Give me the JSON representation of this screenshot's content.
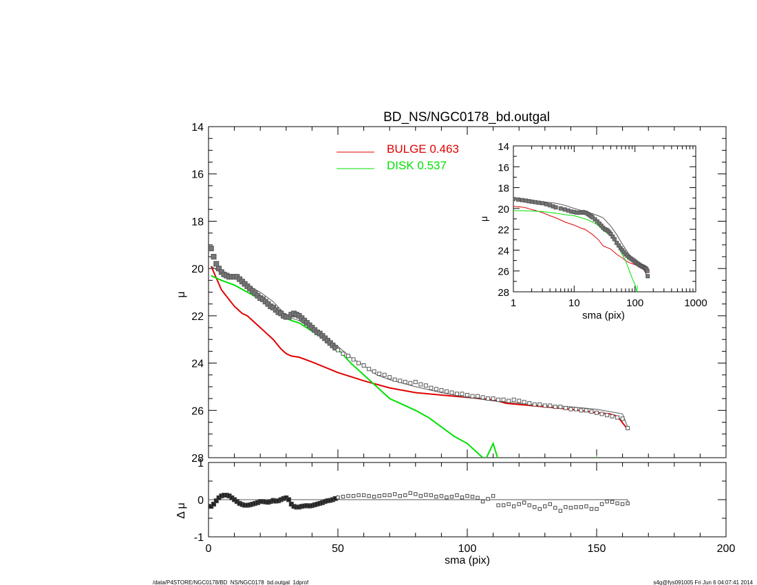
{
  "footer": {
    "left": "/data/P4STORE/NGC0178/BD_NS/NGC0178_bd.outgal_1dprof",
    "right": "s4g@fys091005  Fri Jun  6 04:07:41 2014"
  },
  "colors": {
    "bulge": "#e00000",
    "disk": "#00e000",
    "data": "#555555",
    "model": "#555555",
    "axis": "#000000"
  },
  "chart_data": [
    {
      "id": "main",
      "type": "line",
      "title": "BD_NS/NGC0178_bd.outgal",
      "xlabel": "",
      "ylabel": "μ",
      "xlim": [
        0,
        200
      ],
      "ylim": [
        28,
        14
      ],
      "yticks": [
        "14",
        "16",
        "18",
        "20",
        "22",
        "24",
        "26",
        "28"
      ],
      "legend": [
        {
          "label": "BULGE  0.463",
          "color": "#e00000"
        },
        {
          "label": "DISK  0.537",
          "color": "#00e000"
        }
      ],
      "series": [
        {
          "name": "BULGE  0.463",
          "color": "#e00000",
          "x": [
            1,
            5,
            10,
            13,
            15,
            20,
            25,
            28,
            30,
            32,
            35,
            40,
            50,
            60,
            70,
            80,
            90,
            100,
            105,
            110,
            115,
            120,
            130,
            140,
            150,
            155,
            158,
            162
          ],
          "y": [
            19.9,
            20.9,
            21.6,
            21.9,
            22.0,
            22.5,
            23.0,
            23.4,
            23.6,
            23.7,
            23.75,
            23.95,
            24.4,
            24.75,
            25.05,
            25.25,
            25.35,
            25.45,
            25.5,
            25.55,
            25.7,
            25.75,
            25.85,
            25.95,
            26.1,
            26.15,
            26.25,
            26.8
          ]
        },
        {
          "name": "DISK  0.537",
          "color": "#00e000",
          "x": [
            1,
            5,
            10,
            15,
            20,
            25,
            28,
            30,
            32,
            35,
            40,
            45,
            50,
            55,
            60,
            65,
            70,
            75,
            80,
            85,
            90,
            95,
            100,
            105,
            107,
            110,
            112
          ],
          "y": [
            20.3,
            20.5,
            20.7,
            21.0,
            21.3,
            21.65,
            21.85,
            22.1,
            22.2,
            22.3,
            22.65,
            23.0,
            23.4,
            24.0,
            24.5,
            25.0,
            25.5,
            25.75,
            26.0,
            26.3,
            26.7,
            27.1,
            27.4,
            27.9,
            28.1,
            27.4,
            28.1
          ]
        },
        {
          "name": "",
          "color": "#555555",
          "x": [
            1,
            5,
            10,
            15,
            20,
            25,
            28,
            30,
            32,
            35,
            40,
            45,
            50,
            55,
            60,
            65,
            70,
            80,
            90,
            100,
            110,
            120,
            130,
            140,
            150,
            160,
            162
          ],
          "y": [
            19.9,
            20.2,
            20.4,
            20.7,
            21.0,
            21.4,
            21.75,
            22.0,
            22.1,
            22.2,
            22.55,
            22.9,
            23.3,
            23.75,
            24.1,
            24.5,
            24.7,
            25.0,
            25.25,
            25.45,
            25.6,
            25.7,
            25.8,
            25.85,
            25.95,
            26.15,
            26.7
          ]
        }
      ],
      "points": {
        "x": [
          1,
          2,
          3,
          4,
          5,
          6,
          7,
          8,
          9,
          10,
          11,
          12,
          13,
          14,
          15,
          16,
          17,
          18,
          19,
          20,
          21,
          22,
          23,
          24,
          25,
          26,
          27,
          28,
          29,
          30,
          31,
          32,
          33,
          34,
          35,
          36,
          37,
          38,
          39,
          40,
          41,
          42,
          43,
          44,
          45,
          46,
          47,
          48,
          49,
          50,
          52,
          54,
          56,
          58,
          60,
          62,
          64,
          66,
          68,
          70,
          72,
          74,
          76,
          78,
          80,
          82,
          84,
          86,
          88,
          90,
          92,
          94,
          96,
          98,
          100,
          102,
          104,
          106,
          108,
          110,
          112,
          114,
          116,
          118,
          120,
          122,
          124,
          126,
          128,
          130,
          132,
          134,
          136,
          138,
          140,
          142,
          144,
          146,
          148,
          150,
          152,
          154,
          156,
          158,
          160,
          162
        ],
        "y": [
          19.15,
          19.5,
          19.8,
          20.0,
          20.15,
          20.25,
          20.3,
          20.35,
          20.35,
          20.35,
          20.35,
          20.45,
          20.55,
          20.65,
          20.75,
          20.85,
          20.95,
          21.05,
          21.15,
          21.25,
          21.3,
          21.4,
          21.5,
          21.6,
          21.65,
          21.75,
          21.85,
          21.9,
          22.0,
          22.05,
          22.05,
          21.95,
          21.9,
          21.95,
          22.0,
          22.1,
          22.2,
          22.3,
          22.4,
          22.5,
          22.6,
          22.7,
          22.75,
          22.85,
          22.95,
          23.05,
          23.15,
          23.25,
          23.35,
          23.45,
          23.6,
          23.7,
          23.85,
          24.0,
          24.1,
          24.25,
          24.35,
          24.45,
          24.5,
          24.6,
          24.7,
          24.75,
          24.8,
          24.85,
          24.8,
          24.9,
          24.95,
          25.05,
          25.1,
          25.15,
          25.2,
          25.25,
          25.3,
          25.3,
          25.35,
          25.4,
          25.4,
          25.45,
          25.5,
          25.5,
          25.55,
          25.55,
          25.6,
          25.55,
          25.6,
          25.65,
          25.7,
          25.75,
          25.75,
          25.8,
          25.8,
          25.85,
          25.85,
          25.9,
          25.95,
          25.95,
          26.0,
          26.0,
          26.05,
          26.1,
          26.15,
          26.2,
          26.25,
          26.3,
          26.35,
          26.75
        ],
        "color": "#555555"
      }
    },
    {
      "id": "residual",
      "type": "scatter",
      "xlabel": "sma (pix)",
      "ylabel": "Δ μ",
      "xlim": [
        0,
        200
      ],
      "ylim": [
        -1,
        1
      ],
      "xticks": [
        "0",
        "50",
        "100",
        "150",
        "200"
      ],
      "yticks": [
        "1",
        "0",
        "-1"
      ],
      "line": {
        "x": [
          0,
          162
        ],
        "y": [
          0,
          0
        ]
      },
      "points": {
        "x": [
          1,
          2,
          3,
          4,
          5,
          6,
          7,
          8,
          9,
          10,
          11,
          12,
          13,
          14,
          15,
          16,
          17,
          18,
          19,
          20,
          21,
          22,
          23,
          24,
          25,
          26,
          27,
          28,
          29,
          30,
          31,
          32,
          33,
          34,
          35,
          36,
          37,
          38,
          39,
          40,
          41,
          42,
          43,
          44,
          45,
          46,
          47,
          48,
          49,
          50,
          52,
          54,
          56,
          58,
          60,
          62,
          64,
          66,
          68,
          70,
          72,
          74,
          76,
          78,
          80,
          82,
          84,
          86,
          88,
          90,
          92,
          94,
          96,
          98,
          100,
          102,
          104,
          106,
          108,
          110,
          112,
          114,
          116,
          118,
          120,
          122,
          124,
          126,
          128,
          130,
          132,
          134,
          136,
          138,
          140,
          142,
          144,
          146,
          148,
          150,
          152,
          154,
          156,
          158,
          160,
          162
        ],
        "y": [
          -0.18,
          -0.12,
          -0.03,
          0.05,
          0.1,
          0.12,
          0.12,
          0.1,
          0.05,
          0.0,
          -0.05,
          -0.1,
          -0.13,
          -0.15,
          -0.15,
          -0.14,
          -0.12,
          -0.1,
          -0.08,
          -0.05,
          -0.05,
          -0.06,
          -0.07,
          -0.05,
          -0.02,
          -0.04,
          -0.03,
          0.0,
          0.03,
          0.05,
          0.0,
          -0.12,
          -0.18,
          -0.2,
          -0.2,
          -0.18,
          -0.17,
          -0.16,
          -0.17,
          -0.16,
          -0.14,
          -0.12,
          -0.1,
          -0.08,
          -0.05,
          -0.03,
          -0.02,
          0.0,
          0.03,
          0.06,
          0.08,
          0.1,
          0.1,
          0.12,
          0.12,
          0.1,
          0.08,
          0.1,
          0.12,
          0.12,
          0.15,
          0.1,
          0.12,
          0.18,
          0.15,
          0.1,
          0.13,
          0.12,
          0.08,
          0.1,
          0.06,
          0.08,
          0.12,
          0.06,
          0.1,
          0.08,
          0.05,
          -0.05,
          0.02,
          0.1,
          -0.15,
          -0.15,
          -0.12,
          -0.18,
          -0.12,
          -0.08,
          -0.15,
          -0.2,
          -0.25,
          -0.18,
          -0.12,
          -0.22,
          -0.3,
          -0.2,
          -0.22,
          -0.2,
          -0.2,
          -0.18,
          -0.25,
          -0.25,
          -0.12,
          -0.05,
          -0.06,
          -0.1,
          -0.12,
          -0.1
        ],
        "color": "#555555"
      }
    },
    {
      "id": "inset",
      "type": "line",
      "xscale": "log",
      "xlabel": "sma (pix)",
      "ylabel": "μ",
      "xlim": [
        1,
        1000
      ],
      "ylim": [
        28,
        14
      ],
      "xticks": [
        "1",
        "10",
        "100",
        "1000"
      ],
      "yticks": [
        "14",
        "16",
        "18",
        "20",
        "22",
        "24",
        "26",
        "28"
      ],
      "series": [
        {
          "name": "",
          "color": "#e00000",
          "x": [
            1,
            1.5,
            2,
            3,
            4,
            5,
            7,
            10,
            13,
            15,
            20,
            25,
            30,
            40,
            50,
            60,
            70,
            80,
            90,
            100,
            110,
            120,
            140,
            160
          ],
          "y": [
            19.8,
            19.9,
            20.1,
            20.4,
            20.7,
            20.9,
            21.3,
            21.6,
            21.9,
            22.0,
            22.5,
            23.0,
            23.6,
            23.9,
            24.4,
            24.7,
            25.0,
            25.2,
            25.3,
            25.4,
            25.5,
            25.6,
            25.9,
            26.5
          ]
        },
        {
          "name": "",
          "color": "#00e000",
          "x": [
            1,
            2,
            3,
            5,
            7,
            10,
            15,
            20,
            25,
            30,
            40,
            50,
            60,
            70,
            80,
            90,
            100,
            105,
            108,
            110
          ],
          "y": [
            20.2,
            20.25,
            20.3,
            20.45,
            20.6,
            20.7,
            21.0,
            21.3,
            21.65,
            22.1,
            22.6,
            23.4,
            24.3,
            25.0,
            25.9,
            26.7,
            27.3,
            27.8,
            28.0,
            27.4
          ]
        },
        {
          "name": "",
          "color": "#555555",
          "x": [
            1,
            2,
            3,
            5,
            7,
            10,
            15,
            20,
            25,
            30,
            40,
            50,
            60,
            70,
            80,
            100,
            120,
            140,
            160
          ],
          "y": [
            19.1,
            19.25,
            19.35,
            19.5,
            19.7,
            20.0,
            20.3,
            20.5,
            20.7,
            20.9,
            21.7,
            22.5,
            23.3,
            23.9,
            24.4,
            25.0,
            25.5,
            25.8,
            26.5
          ]
        }
      ],
      "points": {
        "x": [
          1,
          1.2,
          1.4,
          1.6,
          1.8,
          2,
          2.3,
          2.6,
          3,
          3.5,
          4,
          4.5,
          5,
          6,
          7,
          8,
          9,
          10,
          11,
          12,
          13,
          14,
          15,
          16,
          17,
          18,
          19,
          20,
          22,
          24,
          26,
          28,
          30,
          32,
          34,
          36,
          38,
          40,
          43,
          46,
          50,
          54,
          58,
          62,
          66,
          70,
          75,
          80,
          85,
          90,
          95,
          100,
          105,
          110,
          115,
          120,
          125,
          130,
          135,
          140,
          145,
          150,
          155,
          160,
          162
        ],
        "y": [
          19.1,
          19.15,
          19.2,
          19.25,
          19.3,
          19.35,
          19.4,
          19.45,
          19.5,
          19.6,
          19.7,
          19.8,
          19.9,
          20.0,
          20.1,
          20.2,
          20.3,
          20.35,
          20.4,
          20.4,
          20.4,
          20.35,
          20.4,
          20.45,
          20.55,
          20.65,
          20.75,
          20.85,
          21.05,
          21.25,
          21.45,
          21.65,
          21.85,
          22.0,
          22.05,
          22.15,
          22.3,
          22.45,
          22.7,
          22.95,
          23.3,
          23.55,
          23.8,
          24.0,
          24.2,
          24.4,
          24.55,
          24.7,
          24.8,
          24.9,
          25.0,
          25.1,
          25.2,
          25.3,
          25.35,
          25.45,
          25.5,
          25.55,
          25.6,
          25.65,
          25.7,
          25.75,
          25.85,
          26.0,
          26.5
        ],
        "color": "#555555"
      }
    }
  ]
}
